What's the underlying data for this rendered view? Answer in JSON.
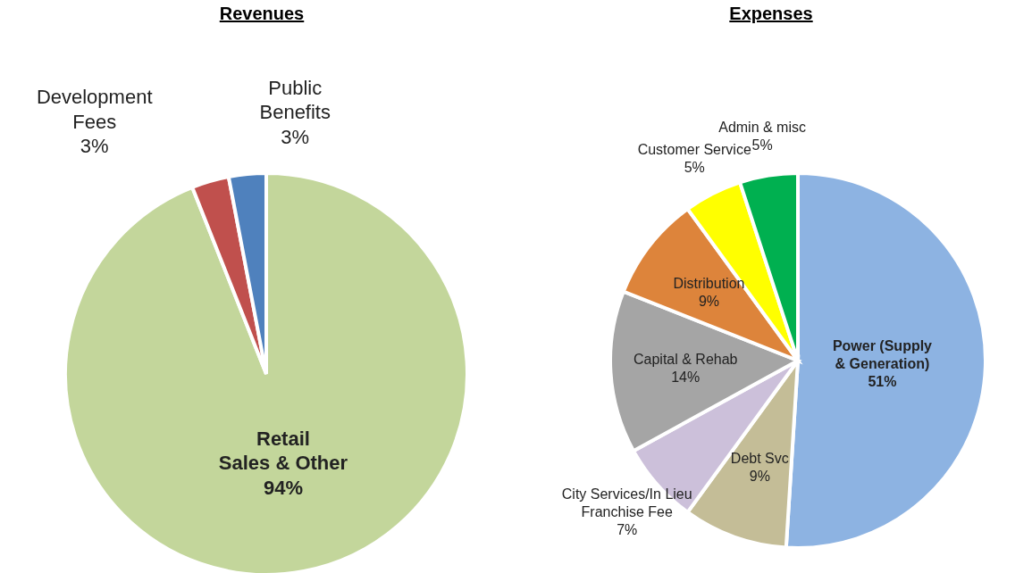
{
  "chart_data": [
    {
      "type": "pie",
      "title": "Revenues",
      "categories": [
        "Retail\nSales & Other",
        "Development\nFees",
        "Public\nBenefits"
      ],
      "values": [
        94,
        3,
        3
      ],
      "value_labels": [
        "94%",
        "3%",
        "3%"
      ],
      "colors": [
        "#c3d69b",
        "#c0504d",
        "#4f81bd"
      ],
      "legend": false
    },
    {
      "type": "pie",
      "title": "Expenses",
      "categories": [
        "Power (Supply\n& Generation)",
        "Debt Svc",
        "City Services/In Lieu\nFranchise Fee",
        "Capital & Rehab",
        "Distribution",
        "Customer Service",
        "Admin & misc"
      ],
      "values": [
        51,
        9,
        7,
        14,
        9,
        5,
        5
      ],
      "value_labels": [
        "51%",
        "9%",
        "7%",
        "14%",
        "9%",
        "5%",
        "5%"
      ],
      "colors": [
        "#8db3e2",
        "#c4bd97",
        "#ccc0da",
        "#a5a5a5",
        "#dd843b",
        "#ffff00",
        "#00b050"
      ],
      "legend": false
    }
  ]
}
